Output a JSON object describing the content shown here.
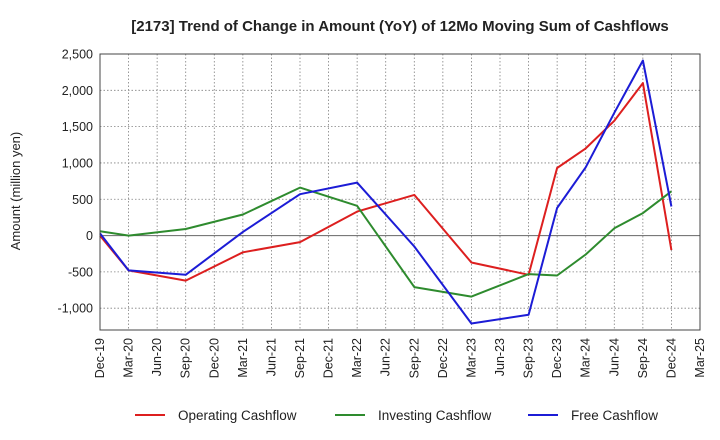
{
  "chart_data": {
    "type": "line",
    "title": "[2173]  Trend of Change in Amount (YoY) of 12Mo Moving Sum of Cashflows",
    "xlabel": "",
    "ylabel": "Amount (million yen)",
    "ylim": [
      -1300,
      2500
    ],
    "yticks": [
      -1000,
      -500,
      0,
      500,
      1000,
      1500,
      2000,
      2500
    ],
    "ytick_labels": [
      "-1,000",
      "-500",
      "0",
      "500",
      "1,000",
      "1,500",
      "2,000",
      "2,500"
    ],
    "categories": [
      "Dec-19",
      "Mar-20",
      "Jun-20",
      "Sep-20",
      "Dec-20",
      "Mar-21",
      "Jun-21",
      "Sep-21",
      "Dec-21",
      "Mar-22",
      "Jun-22",
      "Sep-22",
      "Dec-22",
      "Mar-23",
      "Jun-23",
      "Sep-23",
      "Dec-23",
      "Mar-24",
      "Jun-24",
      "Sep-24",
      "Dec-24",
      "Mar-25"
    ],
    "grid": true,
    "legend_position": "bottom",
    "series": [
      {
        "name": "Operating Cashflow",
        "color": "#dd1f1f",
        "x": [
          "Dec-19",
          "Mar-20",
          "Sep-20",
          "Mar-21",
          "Sep-21",
          "Mar-22",
          "Sep-22",
          "Mar-23",
          "Sep-23",
          "Dec-23",
          "Mar-24",
          "Jun-24",
          "Sep-24",
          "Dec-24"
        ],
        "values": [
          0,
          -480,
          -620,
          -230,
          -90,
          330,
          560,
          -370,
          -540,
          930,
          1200,
          1580,
          2100,
          -200
        ]
      },
      {
        "name": "Investing Cashflow",
        "color": "#2e8b2e",
        "x": [
          "Dec-19",
          "Mar-20",
          "Sep-20",
          "Mar-21",
          "Sep-21",
          "Mar-22",
          "Sep-22",
          "Mar-23",
          "Sep-23",
          "Dec-23",
          "Mar-24",
          "Jun-24",
          "Sep-24",
          "Dec-24"
        ],
        "values": [
          60,
          0,
          90,
          290,
          660,
          410,
          -710,
          -840,
          -530,
          -550,
          -260,
          100,
          310,
          610
        ]
      },
      {
        "name": "Free Cashflow",
        "color": "#1c1cd6",
        "x": [
          "Dec-19",
          "Mar-20",
          "Sep-20",
          "Mar-21",
          "Sep-21",
          "Mar-22",
          "Sep-22",
          "Mar-23",
          "Sep-23",
          "Dec-23",
          "Mar-24",
          "Jun-24",
          "Sep-24",
          "Dec-24"
        ],
        "values": [
          30,
          -480,
          -540,
          50,
          570,
          730,
          -150,
          -1210,
          -1090,
          380,
          940,
          1690,
          2410,
          400
        ]
      }
    ]
  }
}
